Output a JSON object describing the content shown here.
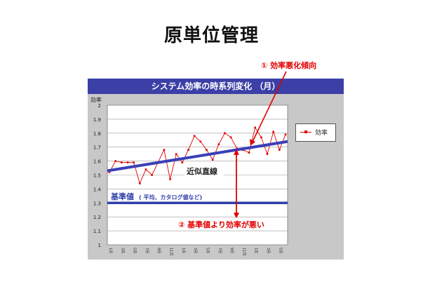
{
  "title": "原単位管理",
  "colors": {
    "header": "#3b3fa6",
    "trend": "#3a3fb8",
    "baseline": "#2f3fa8",
    "series": "#e00000",
    "annotation": "#e00000",
    "panel": "#c8c8c8"
  },
  "annotations": {
    "worsening": "① 効率悪化傾向",
    "trend_label": "近似直線",
    "baseline_label": "基準値",
    "baseline_note": "( 平均、カタログ値など)",
    "below_baseline": "② 基準値より効率が悪い"
  },
  "chart_data": {
    "type": "line",
    "title": "システム効率の時系列変化 （月）",
    "ylabel": "効率",
    "ylim": [
      1,
      2
    ],
    "yticks": [
      "1",
      "1.1",
      "1.2",
      "1.3",
      "1.4",
      "1.5",
      "1.6",
      "1.7",
      "1.8",
      "1.9",
      "2"
    ],
    "categories": [
      "1月",
      "2月",
      "3月",
      "4月",
      "5月",
      "6月",
      "7月",
      "8月",
      "9月",
      "10月",
      "11月",
      "12月",
      "1月",
      "2月",
      "3月",
      "4月",
      "5月",
      "6月",
      "7月",
      "8月",
      "9月",
      "10月",
      "11月",
      "12月",
      "1月",
      "2月",
      "3月",
      "4月",
      "5月",
      "6月"
    ],
    "x_tick_labels": [
      "1月",
      "3月",
      "5月",
      "7月",
      "9月",
      "11月",
      "1月",
      "3月",
      "5月",
      "7月",
      "9月",
      "11月",
      "1月",
      "3月",
      "5月"
    ],
    "series": [
      {
        "name": "効率",
        "values": [
          1.52,
          1.6,
          1.59,
          1.59,
          1.59,
          1.44,
          1.54,
          1.5,
          1.59,
          1.68,
          1.47,
          1.65,
          1.59,
          1.68,
          1.78,
          1.74,
          1.68,
          1.61,
          1.72,
          1.8,
          1.77,
          1.69,
          1.68,
          1.66,
          1.84,
          1.77,
          1.65,
          1.81,
          1.68,
          1.79
        ]
      }
    ],
    "trend_line": {
      "start": 1.53,
      "end": 1.74
    },
    "baseline": 1.3,
    "legend": "right",
    "grid": true
  }
}
